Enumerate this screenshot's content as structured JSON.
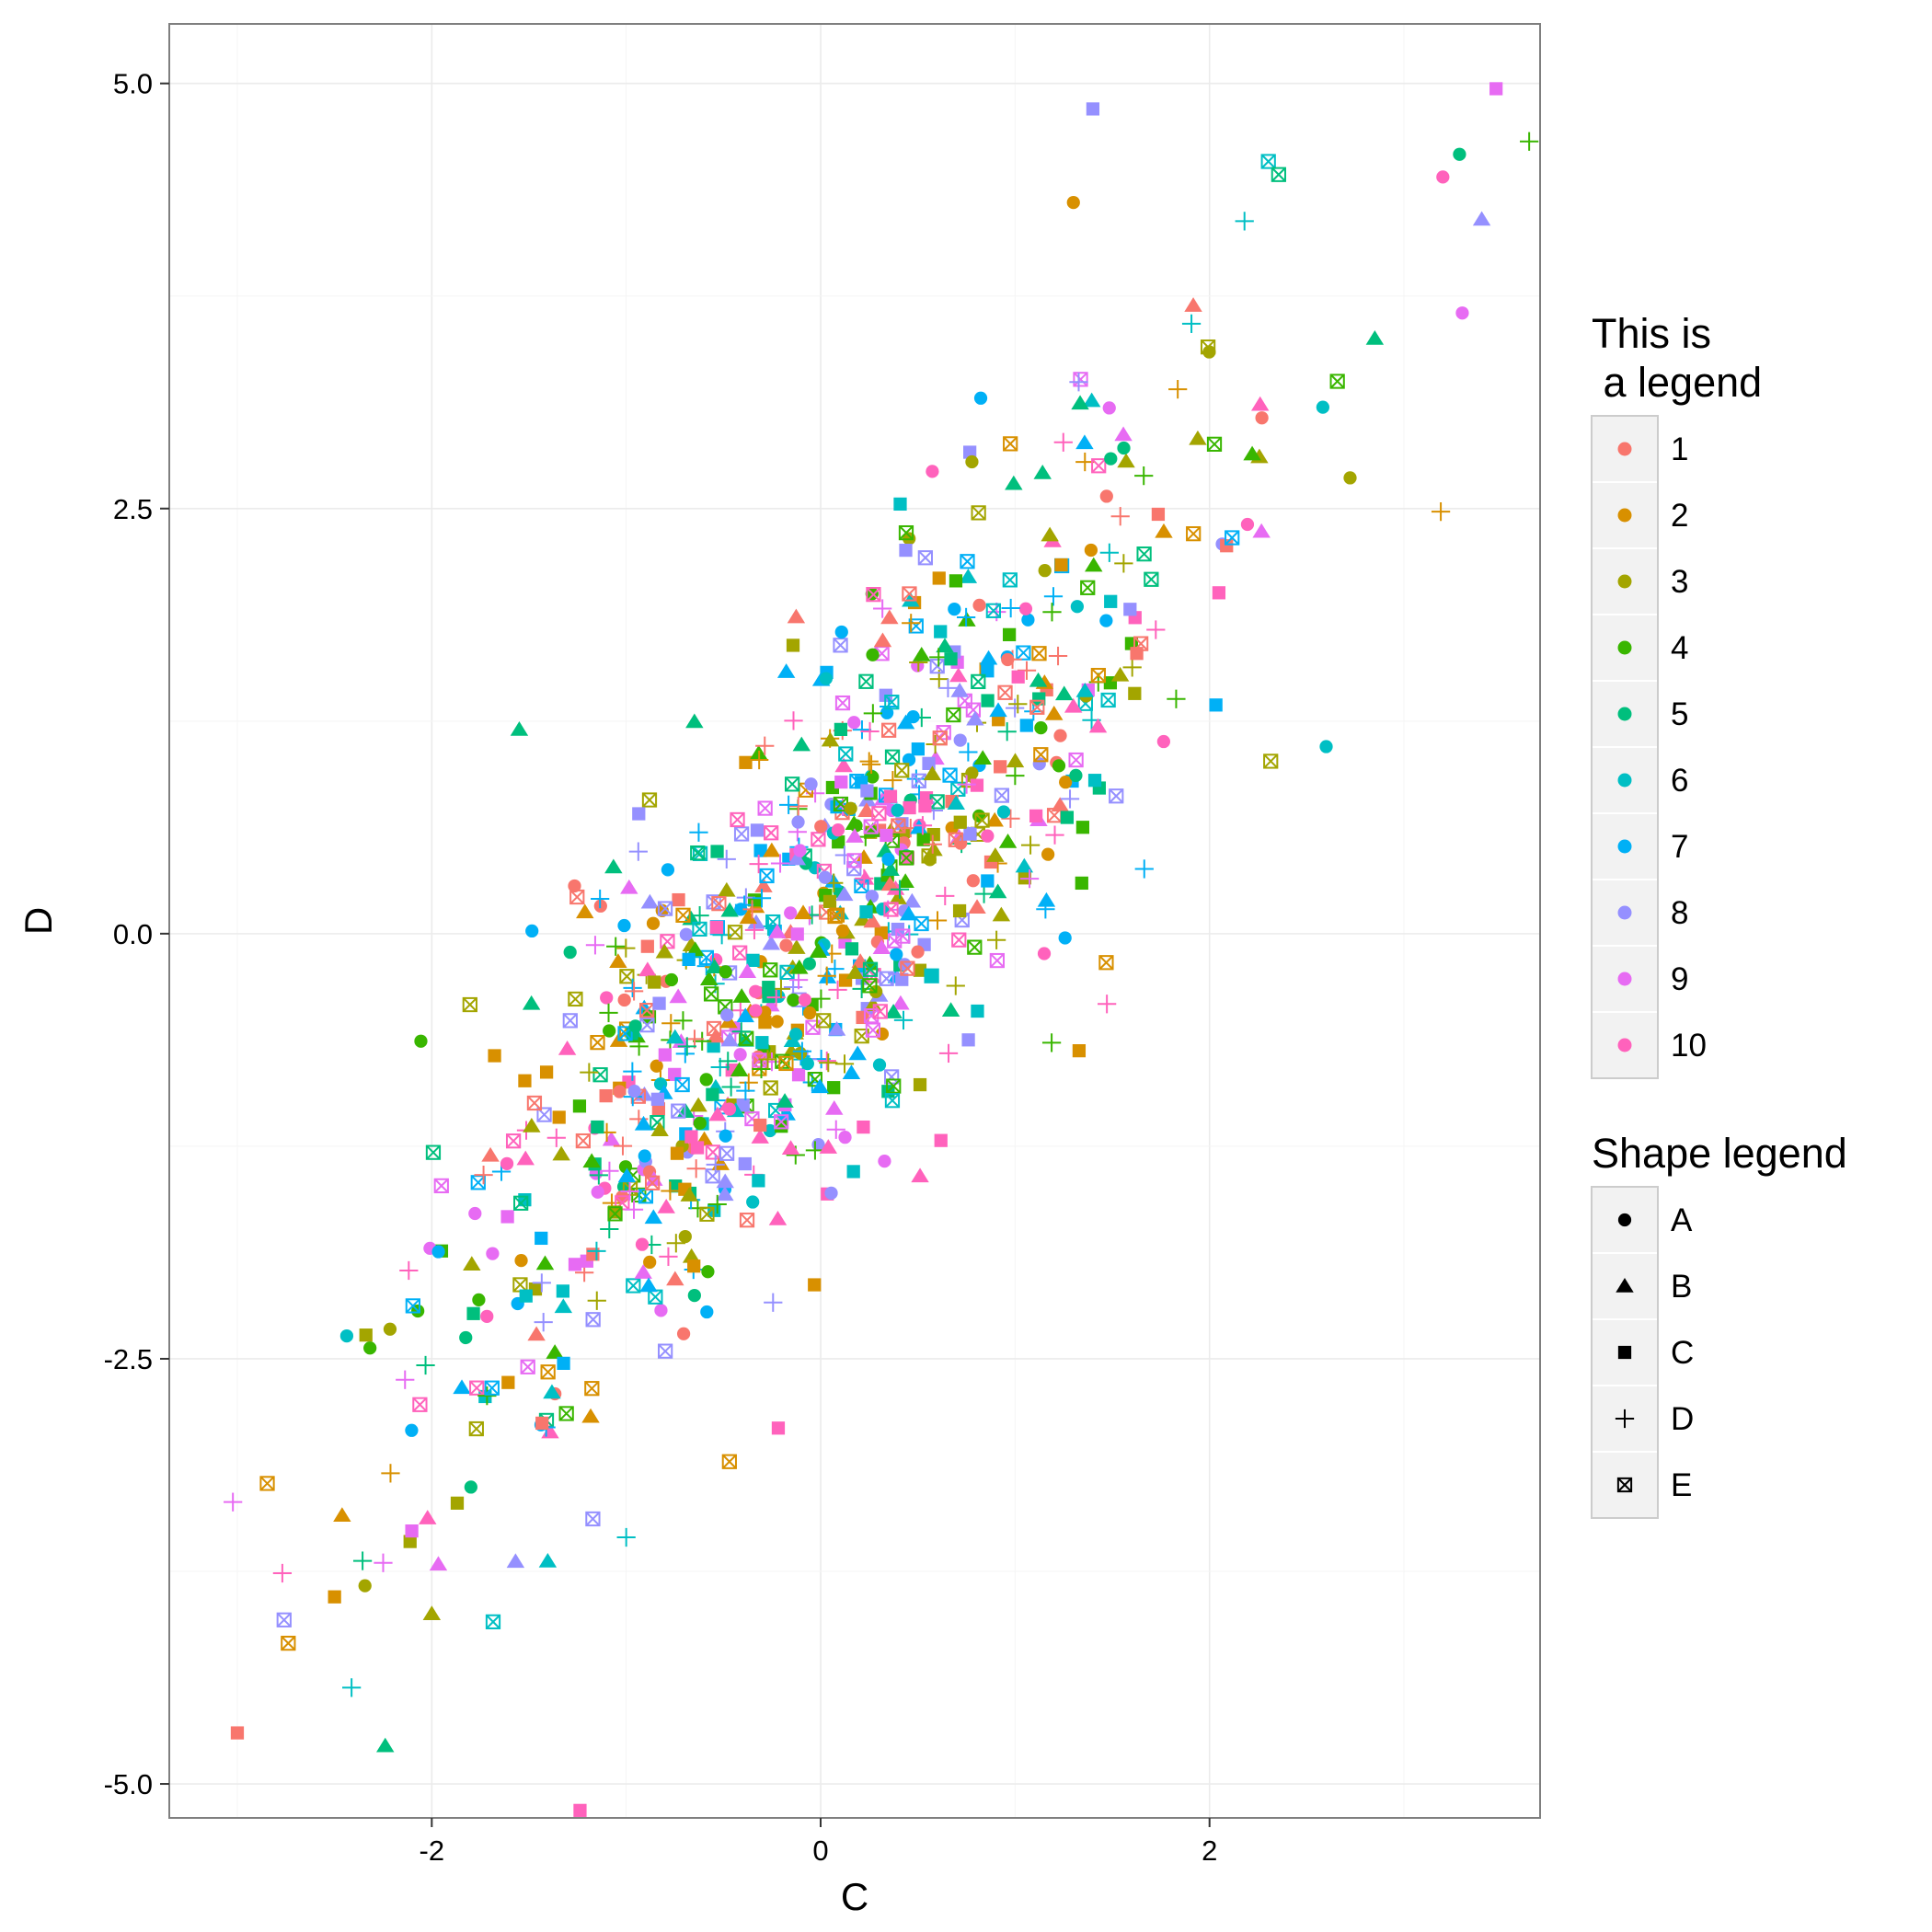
{
  "chart_data": {
    "type": "scatter",
    "xlabel": "C",
    "ylabel": "D",
    "xlim": [
      -3.35,
      3.7
    ],
    "ylim": [
      -5.2,
      5.35
    ],
    "x_ticks": [
      -2,
      0,
      2
    ],
    "x_tick_labels": [
      "-2",
      "0",
      "2"
    ],
    "y_ticks": [
      -5,
      -2.5,
      0,
      2.5,
      5
    ],
    "y_tick_labels": [
      "-5.0",
      "-2.5",
      "0.0",
      "2.5",
      "5.0"
    ],
    "grid": true,
    "legend_placement": "right",
    "color_legend": {
      "title_lines": [
        "This is",
        " a legend"
      ],
      "entries": [
        "1",
        "2",
        "3",
        "4",
        "5",
        "6",
        "7",
        "8",
        "9",
        "10"
      ],
      "colors": [
        "#F8766D",
        "#D89000",
        "#A3A500",
        "#39B600",
        "#00BF7D",
        "#00BFC4",
        "#00B0F6",
        "#9590FF",
        "#E76BF3",
        "#FF62BC"
      ]
    },
    "shape_legend": {
      "title": "Shape legend",
      "entries": [
        "A",
        "B",
        "C",
        "D",
        "E"
      ],
      "shapes": [
        "circle",
        "triangle",
        "square",
        "plus",
        "boxed-x"
      ]
    },
    "points": {
      "fields": [
        "x",
        "y",
        "color_index",
        "shape_index"
      ],
      "notable": [
        [
          -3.0,
          -4.7,
          0,
          2
        ],
        [
          -2.5,
          -3.9,
          1,
          2
        ],
        [
          -2.0,
          -4.0,
          2,
          1
        ],
        [
          -2.25,
          -3.7,
          8,
          3
        ],
        [
          1.4,
          4.85,
          7,
          2
        ],
        [
          1.3,
          4.3,
          1,
          0
        ],
        [
          3.2,
          4.45,
          9,
          0
        ],
        [
          3.4,
          4.2,
          7,
          1
        ],
        [
          3.3,
          3.65,
          8,
          0
        ],
        [
          2.85,
          3.5,
          4,
          1
        ],
        [
          2.6,
          1.1,
          5,
          0
        ],
        [
          -1.55,
          1.2,
          4,
          1
        ],
        [
          -1.0,
          -3.55,
          5,
          3
        ]
      ],
      "generated_count": 1000,
      "generator_seed": 7
    }
  }
}
